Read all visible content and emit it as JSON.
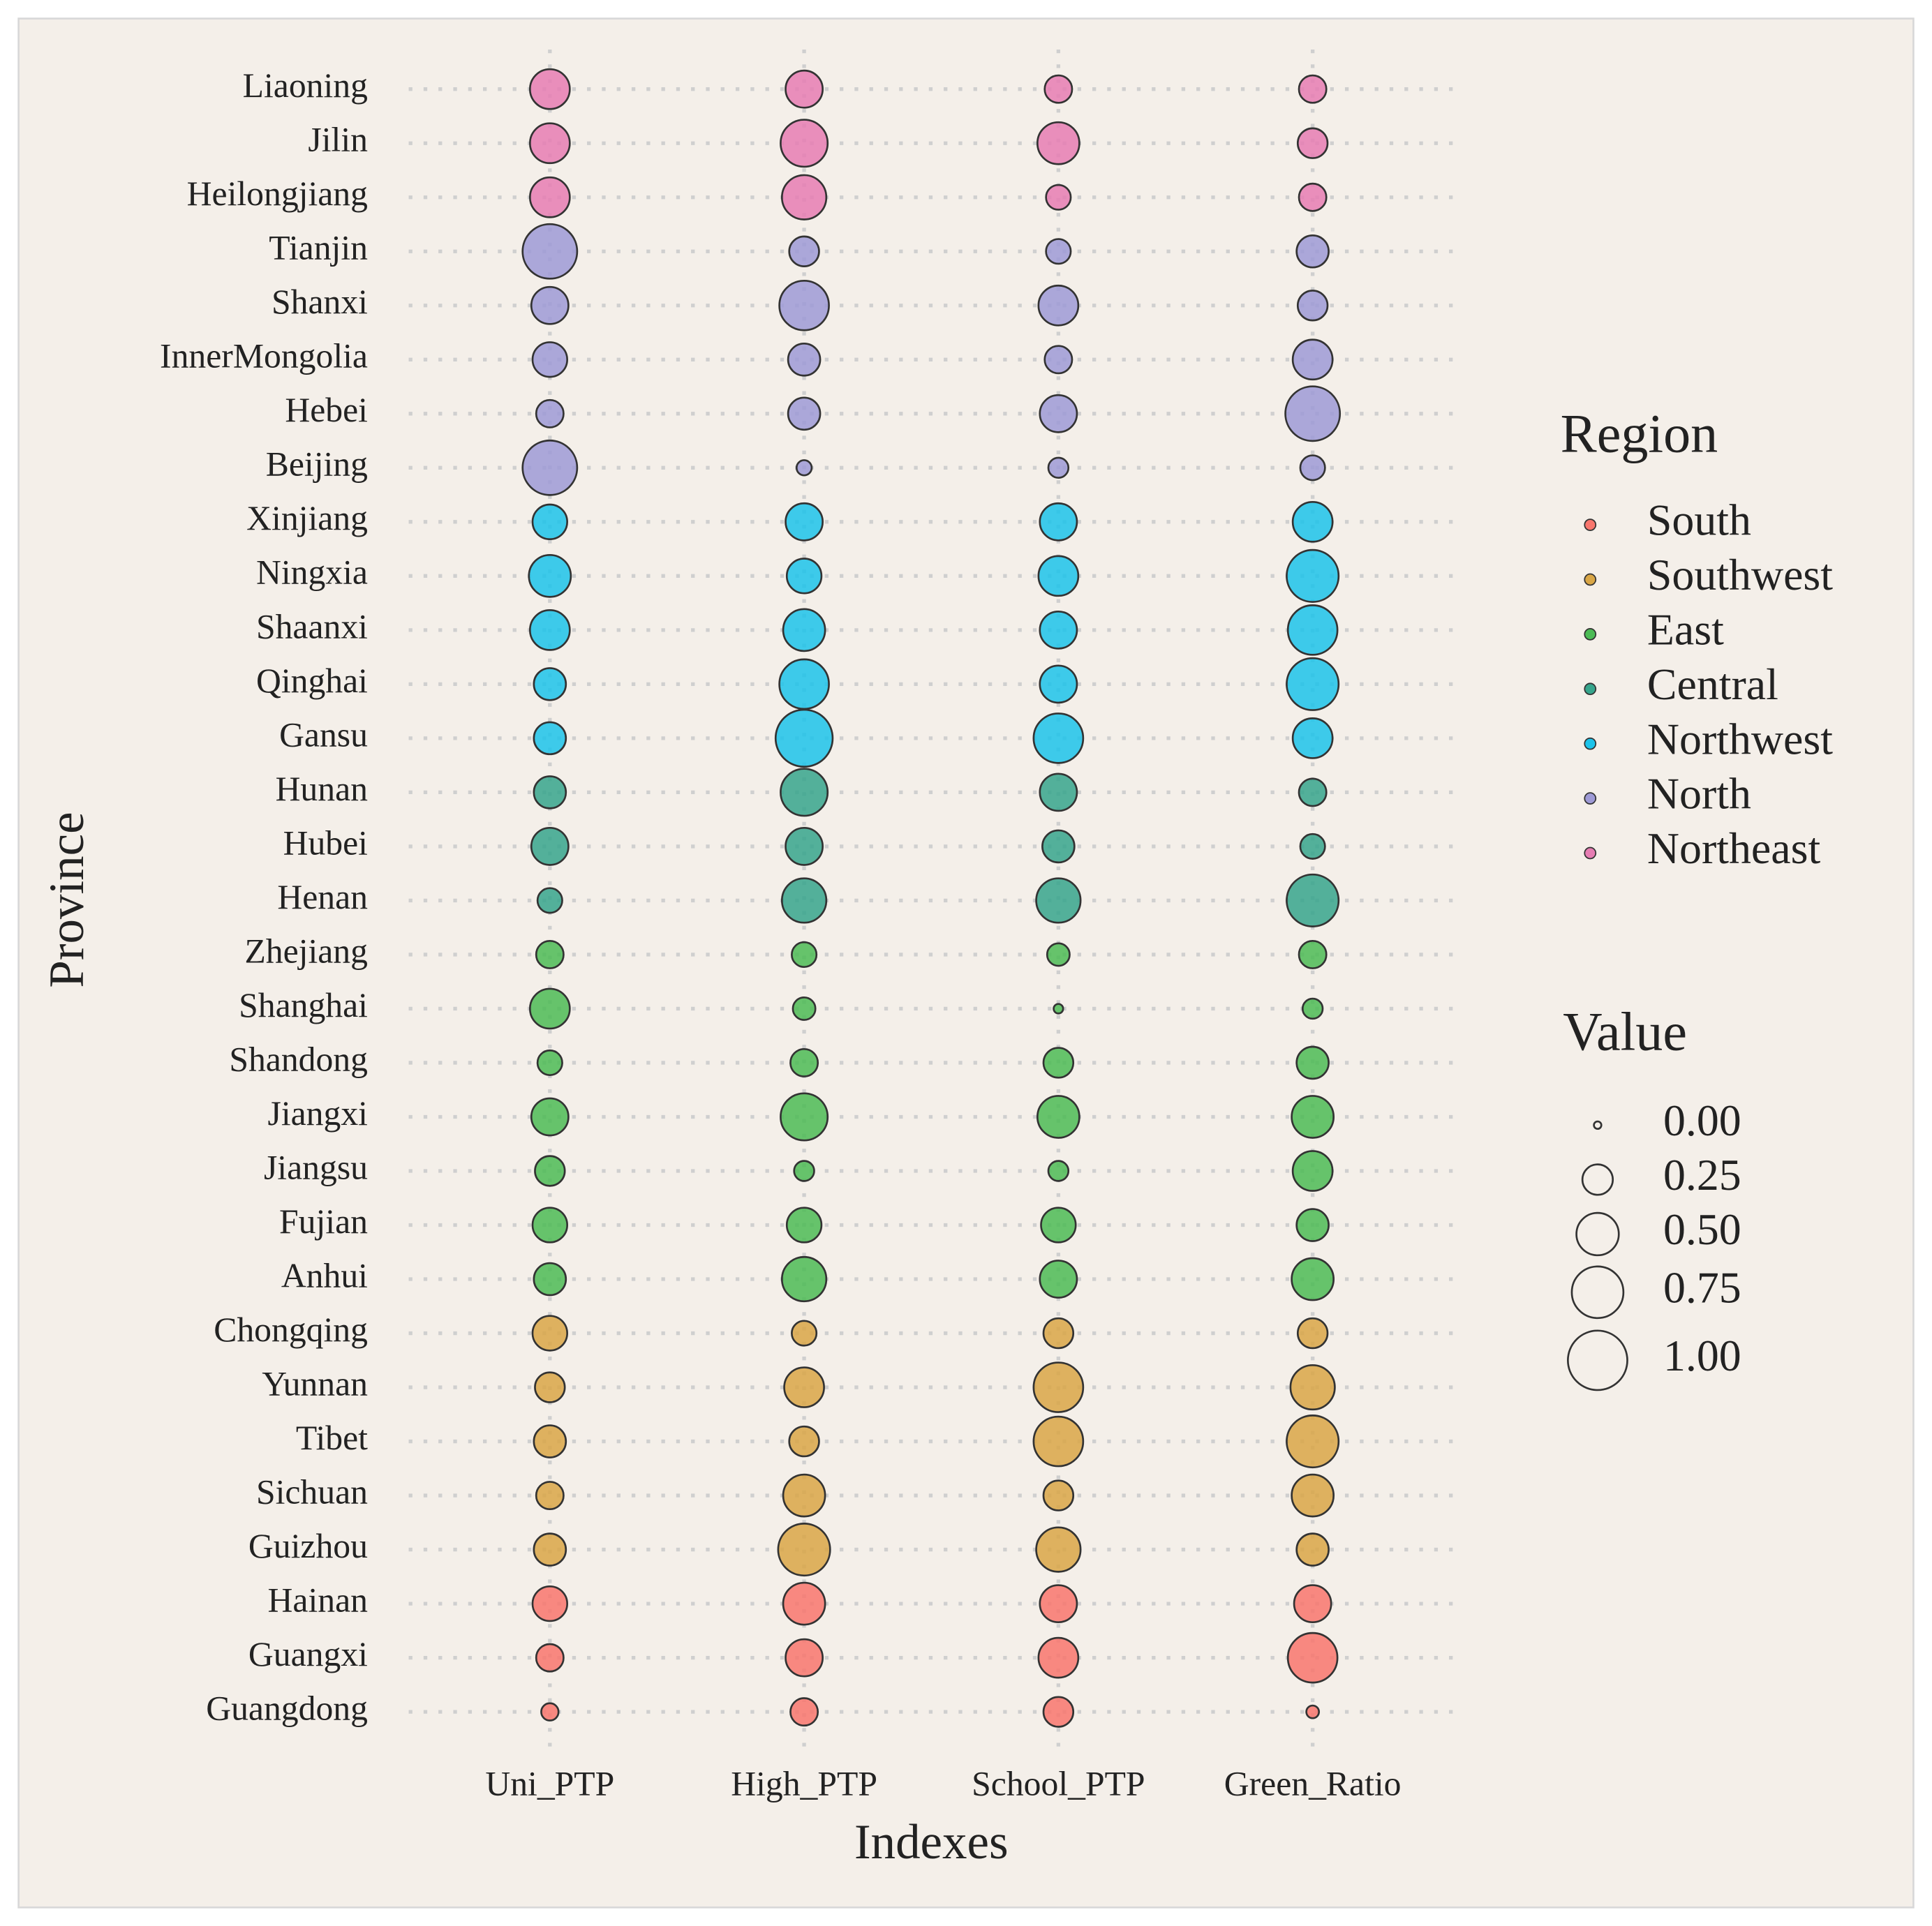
{
  "chart_data": {
    "type": "bubble",
    "x_label": "Indexes",
    "y_label": "Province",
    "categories": [
      "Uni_PTP",
      "High_PTP",
      "School_PTP",
      "Green_Ratio"
    ],
    "grid": true,
    "legend_title": "Region",
    "series": [
      {
        "name": "South",
        "color": "#F8766D",
        "categories": [
          "Guangdong",
          "Guangxi",
          "Hainan"
        ],
        "values": [
          [
            0.07,
            0.2,
            0.24,
            0.03
          ],
          [
            0.2,
            0.38,
            0.44,
            0.69
          ],
          [
            0.33,
            0.49,
            0.38,
            0.38
          ]
        ]
      },
      {
        "name": "Southwest",
        "color": "#D9A646",
        "categories": [
          "Guizhou",
          "Sichuan",
          "Tibet",
          "Yunnan",
          "Chongqing"
        ],
        "values": [
          [
            0.28,
            0.76,
            0.55,
            0.28
          ],
          [
            0.2,
            0.49,
            0.24,
            0.49
          ],
          [
            0.28,
            0.24,
            0.69,
            0.76
          ],
          [
            0.24,
            0.44,
            0.69,
            0.55
          ],
          [
            0.33,
            0.16,
            0.24,
            0.24
          ]
        ]
      },
      {
        "name": "East",
        "color": "#4CBB55",
        "categories": [
          "Anhui",
          "Fujian",
          "Jiangsu",
          "Jiangxi",
          "Shandong",
          "Shanghai",
          "Zhejiang"
        ],
        "values": [
          [
            0.28,
            0.55,
            0.38,
            0.49
          ],
          [
            0.33,
            0.33,
            0.33,
            0.28
          ],
          [
            0.24,
            0.1,
            0.1,
            0.44
          ],
          [
            0.38,
            0.62,
            0.49,
            0.49
          ],
          [
            0.16,
            0.2,
            0.24,
            0.28
          ],
          [
            0.44,
            0.13,
            0.01,
            0.1
          ],
          [
            0.2,
            0.16,
            0.13,
            0.2
          ]
        ]
      },
      {
        "name": "Central",
        "color": "#36A58C",
        "categories": [
          "Henan",
          "Hubei",
          "Hunan"
        ],
        "values": [
          [
            0.16,
            0.55,
            0.55,
            0.76
          ],
          [
            0.38,
            0.38,
            0.28,
            0.16
          ],
          [
            0.28,
            0.62,
            0.38,
            0.2
          ]
        ]
      },
      {
        "name": "Northwest",
        "color": "#1CC3EA",
        "categories": [
          "Gansu",
          "Qinghai",
          "Shaanxi",
          "Ningxia",
          "Xinjiang"
        ],
        "values": [
          [
            0.28,
            0.92,
            0.69,
            0.44
          ],
          [
            0.28,
            0.69,
            0.38,
            0.76
          ],
          [
            0.44,
            0.49,
            0.38,
            0.69
          ],
          [
            0.49,
            0.33,
            0.44,
            0.76
          ],
          [
            0.33,
            0.38,
            0.38,
            0.44
          ]
        ]
      },
      {
        "name": "North",
        "color": "#9E9AD6",
        "categories": [
          "Beijing",
          "Hebei",
          "InnerMongolia",
          "Shanxi",
          "Tianjin"
        ],
        "values": [
          [
            0.84,
            0.05,
            0.1,
            0.16
          ],
          [
            0.2,
            0.28,
            0.38,
            0.84
          ],
          [
            0.33,
            0.28,
            0.2,
            0.44
          ],
          [
            0.38,
            0.69,
            0.44,
            0.24
          ],
          [
            0.84,
            0.24,
            0.16,
            0.28
          ]
        ]
      },
      {
        "name": "Northeast",
        "color": "#E67DB3",
        "categories": [
          "Heilongjiang",
          "Jilin",
          "Liaoning"
        ],
        "values": [
          [
            0.44,
            0.55,
            0.16,
            0.2
          ],
          [
            0.44,
            0.62,
            0.49,
            0.24
          ],
          [
            0.44,
            0.38,
            0.2,
            0.2
          ]
        ]
      }
    ],
    "size_legend": {
      "title": "Value",
      "values": [
        {
          "value": 0,
          "label": "0.00"
        },
        {
          "value": 0.25,
          "label": "0.25"
        },
        {
          "value": 0.5,
          "label": "0.50"
        },
        {
          "value": 0.75,
          "label": "0.75"
        },
        {
          "value": 1,
          "label": "1.00"
        }
      ]
    }
  }
}
